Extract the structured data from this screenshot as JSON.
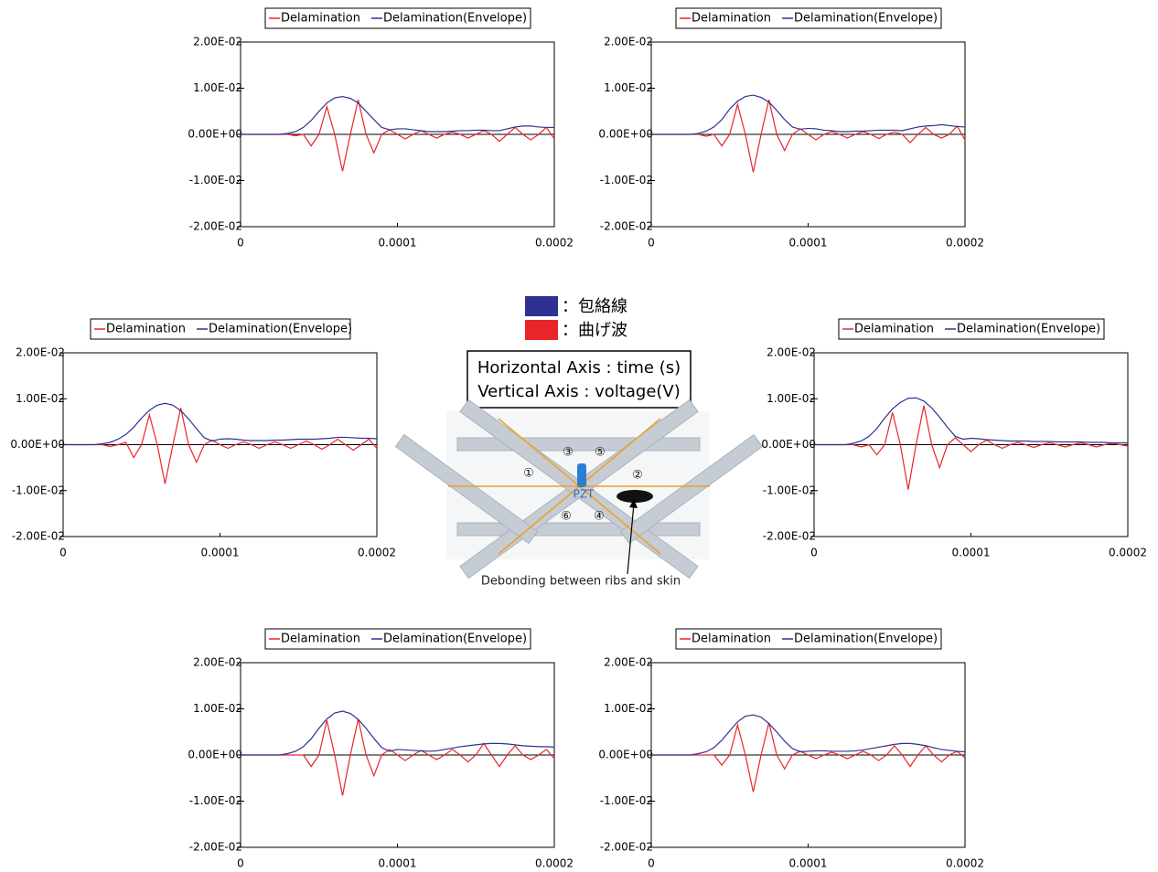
{
  "chart_data": [
    {
      "type": "line",
      "x": [
        0,
        5e-06,
        1e-05,
        1.5e-05,
        2e-05,
        2.5e-05,
        3e-05,
        3.5e-05,
        4e-05,
        4.5e-05,
        5e-05,
        5.5e-05,
        6e-05,
        6.5e-05,
        7e-05,
        7.5e-05,
        8e-05,
        8.5e-05,
        9e-05,
        9.5e-05,
        0.0001,
        0.000105,
        0.00011,
        0.000115,
        0.00012,
        0.000125,
        0.00013,
        0.000135,
        0.00014,
        0.000145,
        0.00015,
        0.000155,
        0.00016,
        0.000165,
        0.00017,
        0.000175,
        0.00018,
        0.000185,
        0.00019,
        0.000195,
        0.0002
      ],
      "series": [
        {
          "name": "Delamination",
          "color": "#e8262a",
          "values": [
            0,
            0,
            0,
            0,
            0,
            0,
            0,
            -0.0003,
            0,
            -0.0025,
            0,
            0.006,
            0,
            -0.008,
            0,
            0.0075,
            0,
            -0.004,
            0,
            0.001,
            0,
            -0.001,
            0,
            0.0008,
            0,
            -0.0008,
            0,
            0.0005,
            0,
            -0.0008,
            0,
            0.0008,
            0,
            -0.0015,
            0,
            0.0015,
            0,
            -0.0012,
            0,
            0.0015,
            -0.001
          ]
        },
        {
          "name": "Delamination(Envelope)",
          "color": "#2e3192",
          "values": [
            0,
            0,
            0,
            0,
            0,
            0,
            0.0002,
            0.0006,
            0.0015,
            0.003,
            0.005,
            0.0068,
            0.0079,
            0.0082,
            0.0078,
            0.0068,
            0.005,
            0.0032,
            0.0015,
            0.001,
            0.0012,
            0.0012,
            0.001,
            0.0008,
            0.0006,
            0.0006,
            0.0006,
            0.0007,
            0.0008,
            0.0008,
            0.0009,
            0.0009,
            0.0008,
            0.0008,
            0.0012,
            0.0016,
            0.0018,
            0.0018,
            0.0016,
            0.0015,
            0.0015
          ]
        }
      ],
      "xlim": [
        0,
        0.0002
      ],
      "ylim": [
        -0.02,
        0.02
      ],
      "xticks": [
        0,
        0.0001,
        0.0002
      ],
      "yticks": [
        {
          "value": -0.02,
          "label": "-2.00E-02"
        },
        {
          "value": -0.01,
          "label": "-1.00E-02"
        },
        {
          "value": 0,
          "label": "0.00E+00"
        },
        {
          "value": 0.01,
          "label": "1.00E-02"
        },
        {
          "value": 0.02,
          "label": "2.00E-02"
        }
      ]
    },
    {
      "type": "line",
      "x": [
        0,
        5e-06,
        1e-05,
        1.5e-05,
        2e-05,
        2.5e-05,
        3e-05,
        3.5e-05,
        4e-05,
        4.5e-05,
        5e-05,
        5.5e-05,
        6e-05,
        6.5e-05,
        7e-05,
        7.5e-05,
        8e-05,
        8.5e-05,
        9e-05,
        9.5e-05,
        0.0001,
        0.000105,
        0.00011,
        0.000115,
        0.00012,
        0.000125,
        0.00013,
        0.000135,
        0.00014,
        0.000145,
        0.00015,
        0.000155,
        0.00016,
        0.000165,
        0.00017,
        0.000175,
        0.00018,
        0.000185,
        0.00019,
        0.000195,
        0.0002
      ],
      "series": [
        {
          "name": "Delamination",
          "color": "#e8262a",
          "values": [
            0,
            0,
            0,
            0,
            0,
            0,
            0,
            -0.0004,
            0,
            -0.0025,
            0,
            0.0065,
            0,
            -0.0082,
            0,
            0.0075,
            0,
            -0.0035,
            0,
            0.0012,
            0,
            -0.0012,
            0,
            0.0006,
            0,
            -0.0008,
            0,
            0.0006,
            0,
            -0.0009,
            0,
            0.0005,
            0,
            -0.0018,
            0,
            0.0015,
            0,
            -0.0008,
            0,
            0.0018,
            -0.0012
          ]
        },
        {
          "name": "Delamination(Envelope)",
          "color": "#2e3192",
          "values": [
            0,
            0,
            0,
            0,
            0,
            0,
            0.0002,
            0.0007,
            0.0016,
            0.0032,
            0.0055,
            0.0072,
            0.0082,
            0.0085,
            0.008,
            0.007,
            0.0052,
            0.0032,
            0.0016,
            0.0011,
            0.0013,
            0.0012,
            0.0009,
            0.0008,
            0.0006,
            0.0006,
            0.0007,
            0.0007,
            0.0008,
            0.0009,
            0.0009,
            0.0009,
            0.0008,
            0.0012,
            0.0016,
            0.0018,
            0.0019,
            0.0021,
            0.0019,
            0.0017,
            0.0016
          ]
        }
      ],
      "xlim": [
        0,
        0.0002
      ],
      "ylim": [
        -0.02,
        0.02
      ],
      "xticks": [
        0,
        0.0001,
        0.0002
      ],
      "yticks": [
        {
          "value": -0.02,
          "label": "-2.00E-02"
        },
        {
          "value": -0.01,
          "label": "-1.00E-02"
        },
        {
          "value": 0,
          "label": "0.00E+00"
        },
        {
          "value": 0.01,
          "label": "1.00E-02"
        },
        {
          "value": 0.02,
          "label": "2.00E-02"
        }
      ]
    },
    {
      "type": "line",
      "x": [
        0,
        5e-06,
        1e-05,
        1.5e-05,
        2e-05,
        2.5e-05,
        3e-05,
        3.5e-05,
        4e-05,
        4.5e-05,
        5e-05,
        5.5e-05,
        6e-05,
        6.5e-05,
        7e-05,
        7.5e-05,
        8e-05,
        8.5e-05,
        9e-05,
        9.5e-05,
        0.0001,
        0.000105,
        0.00011,
        0.000115,
        0.00012,
        0.000125,
        0.00013,
        0.000135,
        0.00014,
        0.000145,
        0.00015,
        0.000155,
        0.00016,
        0.000165,
        0.00017,
        0.000175,
        0.00018,
        0.000185,
        0.00019,
        0.000195,
        0.0002
      ],
      "series": [
        {
          "name": "Delamination",
          "color": "#e8262a",
          "values": [
            0,
            0,
            0,
            0,
            0,
            0,
            -0.0004,
            0,
            0.0005,
            -0.0028,
            0,
            0.0065,
            0,
            -0.0085,
            0,
            0.008,
            0,
            -0.0038,
            0,
            0.001,
            0,
            -0.0008,
            0,
            0.0006,
            0,
            -0.0008,
            0,
            0.0006,
            0,
            -0.0008,
            0,
            0.0008,
            0,
            -0.001,
            0,
            0.0012,
            0,
            -0.0012,
            0,
            0.0012,
            -0.0008
          ]
        },
        {
          "name": "Delamination(Envelope)",
          "color": "#2e3192",
          "values": [
            0,
            0,
            0,
            0,
            0,
            0.0002,
            0.0005,
            0.0012,
            0.0022,
            0.0038,
            0.0058,
            0.0075,
            0.0086,
            0.009,
            0.0086,
            0.0074,
            0.0056,
            0.0035,
            0.0015,
            0.0008,
            0.0012,
            0.0013,
            0.0012,
            0.001,
            0.0009,
            0.0009,
            0.0009,
            0.001,
            0.001,
            0.0011,
            0.0012,
            0.0012,
            0.0012,
            0.0013,
            0.0014,
            0.0016,
            0.0016,
            0.0015,
            0.0014,
            0.0014,
            0.0013
          ]
        }
      ],
      "xlim": [
        0,
        0.0002
      ],
      "ylim": [
        -0.02,
        0.02
      ],
      "xticks": [
        0,
        0.0001,
        0.0002
      ],
      "yticks": [
        {
          "value": -0.02,
          "label": "-2.00E-02"
        },
        {
          "value": -0.01,
          "label": "-1.00E-02"
        },
        {
          "value": 0,
          "label": "0.00E+00"
        },
        {
          "value": 0.01,
          "label": "1.00E-02"
        },
        {
          "value": 0.02,
          "label": "2.00E-02"
        }
      ]
    },
    {
      "type": "line",
      "x": [
        0,
        5e-06,
        1e-05,
        1.5e-05,
        2e-05,
        2.5e-05,
        3e-05,
        3.5e-05,
        4e-05,
        4.5e-05,
        5e-05,
        5.5e-05,
        6e-05,
        6.5e-05,
        7e-05,
        7.5e-05,
        8e-05,
        8.5e-05,
        9e-05,
        9.5e-05,
        0.0001,
        0.000105,
        0.00011,
        0.000115,
        0.00012,
        0.000125,
        0.00013,
        0.000135,
        0.00014,
        0.000145,
        0.00015,
        0.000155,
        0.00016,
        0.000165,
        0.00017,
        0.000175,
        0.00018,
        0.000185,
        0.00019,
        0.000195,
        0.0002
      ],
      "series": [
        {
          "name": "Delamination",
          "color": "#e8262a",
          "values": [
            0,
            0,
            0,
            0,
            0,
            0,
            -0.0005,
            0,
            -0.0022,
            0,
            0.007,
            0,
            -0.0098,
            0,
            0.0085,
            0,
            -0.005,
            0,
            0.0015,
            0,
            -0.0015,
            0,
            0.001,
            0,
            -0.0008,
            0,
            0.0005,
            0,
            -0.0006,
            0,
            0.0004,
            0,
            -0.0005,
            0,
            0.0004,
            0,
            -0.0005,
            0,
            0.0003,
            0,
            -0.0003
          ]
        },
        {
          "name": "Delamination(Envelope)",
          "color": "#2e3192",
          "values": [
            0,
            0,
            0,
            0,
            0,
            0.0003,
            0.0008,
            0.0018,
            0.0035,
            0.0058,
            0.0078,
            0.0092,
            0.0101,
            0.0102,
            0.0095,
            0.008,
            0.006,
            0.0038,
            0.0018,
            0.0012,
            0.0014,
            0.0013,
            0.0011,
            0.001,
            0.0009,
            0.0008,
            0.0008,
            0.0008,
            0.0007,
            0.0007,
            0.0007,
            0.0006,
            0.0006,
            0.0006,
            0.0006,
            0.0005,
            0.0005,
            0.0005,
            0.0004,
            0.0004,
            0.0004
          ]
        }
      ],
      "xlim": [
        0,
        0.0002
      ],
      "ylim": [
        -0.02,
        0.02
      ],
      "xticks": [
        0,
        0.0001,
        0.0002
      ],
      "yticks": [
        {
          "value": -0.02,
          "label": "-2.00E-02"
        },
        {
          "value": -0.01,
          "label": "-1.00E-02"
        },
        {
          "value": 0,
          "label": "0.00E+00"
        },
        {
          "value": 0.01,
          "label": "1.00E-02"
        },
        {
          "value": 0.02,
          "label": "2.00E-02"
        }
      ]
    },
    {
      "type": "line",
      "x": [
        0,
        5e-06,
        1e-05,
        1.5e-05,
        2e-05,
        2.5e-05,
        3e-05,
        3.5e-05,
        4e-05,
        4.5e-05,
        5e-05,
        5.5e-05,
        6e-05,
        6.5e-05,
        7e-05,
        7.5e-05,
        8e-05,
        8.5e-05,
        9e-05,
        9.5e-05,
        0.0001,
        0.000105,
        0.00011,
        0.000115,
        0.00012,
        0.000125,
        0.00013,
        0.000135,
        0.00014,
        0.000145,
        0.00015,
        0.000155,
        0.00016,
        0.000165,
        0.00017,
        0.000175,
        0.00018,
        0.000185,
        0.00019,
        0.000195,
        0.0002
      ],
      "series": [
        {
          "name": "Delamination",
          "color": "#e8262a",
          "values": [
            0,
            0,
            0,
            0,
            0,
            0,
            0,
            0,
            0,
            -0.0025,
            0,
            0.0075,
            0,
            -0.0088,
            0,
            0.0078,
            0,
            -0.0045,
            0,
            0.0012,
            0,
            -0.0012,
            0,
            0.001,
            0,
            -0.001,
            0,
            0.0012,
            0,
            -0.0015,
            0,
            0.0025,
            0,
            -0.0025,
            0,
            0.002,
            0,
            -0.001,
            0,
            0.0012,
            -0.0008
          ]
        },
        {
          "name": "Delamination(Envelope)",
          "color": "#2e3192",
          "values": [
            0,
            0,
            0,
            0,
            0,
            0,
            0.0003,
            0.0008,
            0.0018,
            0.0035,
            0.0058,
            0.0078,
            0.0091,
            0.0095,
            0.009,
            0.0077,
            0.0058,
            0.0036,
            0.0016,
            0.0008,
            0.0012,
            0.0011,
            0.001,
            0.0009,
            0.0008,
            0.0009,
            0.0012,
            0.0015,
            0.0018,
            0.002,
            0.0022,
            0.0024,
            0.0025,
            0.0025,
            0.0024,
            0.0022,
            0.002,
            0.0019,
            0.0018,
            0.0018,
            0.0017
          ]
        }
      ],
      "xlim": [
        0,
        0.0002
      ],
      "ylim": [
        -0.02,
        0.02
      ],
      "xticks": [
        0,
        0.0001,
        0.0002
      ],
      "yticks": [
        {
          "value": -0.02,
          "label": "-2.00E-02"
        },
        {
          "value": -0.01,
          "label": "-1.00E-02"
        },
        {
          "value": 0,
          "label": "0.00E+00"
        },
        {
          "value": 0.01,
          "label": "1.00E-02"
        },
        {
          "value": 0.02,
          "label": "2.00E-02"
        }
      ]
    },
    {
      "type": "line",
      "x": [
        0,
        5e-06,
        1e-05,
        1.5e-05,
        2e-05,
        2.5e-05,
        3e-05,
        3.5e-05,
        4e-05,
        4.5e-05,
        5e-05,
        5.5e-05,
        6e-05,
        6.5e-05,
        7e-05,
        7.5e-05,
        8e-05,
        8.5e-05,
        9e-05,
        9.5e-05,
        0.0001,
        0.000105,
        0.00011,
        0.000115,
        0.00012,
        0.000125,
        0.00013,
        0.000135,
        0.00014,
        0.000145,
        0.00015,
        0.000155,
        0.00016,
        0.000165,
        0.00017,
        0.000175,
        0.00018,
        0.000185,
        0.00019,
        0.000195,
        0.0002
      ],
      "series": [
        {
          "name": "Delamination",
          "color": "#e8262a",
          "values": [
            0,
            0,
            0,
            0,
            0,
            0,
            0,
            0,
            0,
            -0.0022,
            0,
            0.0065,
            0,
            -0.008,
            0,
            0.007,
            0,
            -0.003,
            0,
            0.0008,
            0,
            -0.0008,
            0,
            0.0006,
            0,
            -0.0008,
            0,
            0.0008,
            0,
            -0.0012,
            0,
            0.002,
            0,
            -0.0025,
            0,
            0.002,
            0,
            -0.0015,
            0,
            0.0008,
            -0.0006
          ]
        },
        {
          "name": "Delamination(Envelope)",
          "color": "#2e3192",
          "values": [
            0,
            0,
            0,
            0,
            0,
            0,
            0.0003,
            0.0007,
            0.0016,
            0.0032,
            0.0052,
            0.0072,
            0.0084,
            0.0087,
            0.0082,
            0.0068,
            0.005,
            0.003,
            0.0014,
            0.0007,
            0.0008,
            0.0009,
            0.0009,
            0.0008,
            0.0008,
            0.0008,
            0.0009,
            0.0011,
            0.0014,
            0.0017,
            0.002,
            0.0023,
            0.0025,
            0.0025,
            0.0023,
            0.002,
            0.0016,
            0.0012,
            0.001,
            0.0008,
            0.0007
          ]
        }
      ],
      "xlim": [
        0,
        0.0002
      ],
      "ylim": [
        -0.02,
        0.02
      ],
      "xticks": [
        0,
        0.0001,
        0.0002
      ],
      "yticks": [
        {
          "value": -0.02,
          "label": "-2.00E-02"
        },
        {
          "value": -0.01,
          "label": "-1.00E-02"
        },
        {
          "value": 0,
          "label": "0.00E+00"
        },
        {
          "value": 0.01,
          "label": "1.00E-02"
        },
        {
          "value": 0.02,
          "label": "2.00E-02"
        }
      ]
    }
  ],
  "center_panel": {
    "legend": [
      {
        "label": "：包絡線",
        "color": "#2e3192"
      },
      {
        "label": "：曲げ波",
        "color": "#e8262a"
      }
    ],
    "axis_note": [
      "Horizontal Axis : time (s)",
      "Vertical Axis : voltage(V)"
    ],
    "sensor": "PZT",
    "markers": [
      "①",
      "②",
      "③",
      "④",
      "⑤",
      "⑥"
    ],
    "caption": "Debonding between ribs and skin"
  }
}
